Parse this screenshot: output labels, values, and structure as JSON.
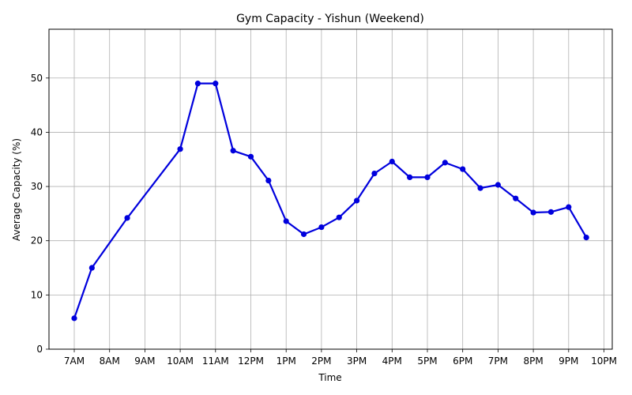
{
  "chart_data": {
    "type": "line",
    "title": "Gym Capacity - Yishun (Weekend)",
    "xlabel": "Time",
    "ylabel": "Average Capacity (%)",
    "x_ticks": [
      "7AM",
      "8AM",
      "9AM",
      "10AM",
      "11AM",
      "12PM",
      "1PM",
      "2PM",
      "3PM",
      "4PM",
      "5PM",
      "6PM",
      "7PM",
      "8PM",
      "9PM",
      "10PM"
    ],
    "y_ticks": [
      0,
      10,
      20,
      30,
      40,
      50
    ],
    "xlim": [
      "7AM",
      "10PM"
    ],
    "ylim": [
      0,
      59
    ],
    "grid": true,
    "series": [
      {
        "color": "#0000dd",
        "x": [
          "7:00AM",
          "7:30AM",
          "8:30AM",
          "10:00AM",
          "10:30AM",
          "11:00AM",
          "11:30AM",
          "12:00PM",
          "12:30PM",
          "1:00PM",
          "1:30PM",
          "2:00PM",
          "2:30PM",
          "3:00PM",
          "3:30PM",
          "4:00PM",
          "4:30PM",
          "5:00PM",
          "5:30PM",
          "6:00PM",
          "6:30PM",
          "7:00PM",
          "7:30PM",
          "8:00PM",
          "8:30PM",
          "9:00PM",
          "9:30PM"
        ],
        "y": [
          5.7,
          15.0,
          24.2,
          36.9,
          49.0,
          49.0,
          36.6,
          35.5,
          31.1,
          23.6,
          21.2,
          22.5,
          24.3,
          27.4,
          32.4,
          34.6,
          31.7,
          31.7,
          34.4,
          33.2,
          29.7,
          30.3,
          27.8,
          25.2,
          25.3,
          26.2,
          20.6
        ]
      }
    ]
  }
}
